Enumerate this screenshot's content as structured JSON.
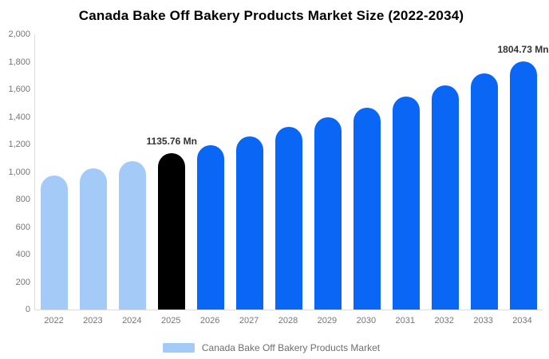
{
  "title": "Canada Bake Off Bakery Products Market Size (2022-2034)",
  "legend": {
    "label": "Canada Bake Off Bakery Products Market",
    "swatch_color": "#a4cbf7"
  },
  "colors": {
    "historical_bar": "#a4cbf7",
    "base_year_bar": "#000000",
    "forecast_bar": "#0a66f5",
    "axis_line": "#dcdcdc",
    "tick_text": "#757575",
    "value_label_text": "#333333",
    "title_text": "#000000",
    "background": "#ffffff"
  },
  "chart_data": {
    "type": "bar",
    "title": "Canada Bake Off Bakery Products Market Size (2022-2034)",
    "xlabel": "",
    "ylabel": "",
    "ylim": [
      0,
      2000
    ],
    "ytick_step": 200,
    "ytick_labels": [
      "2,000",
      "1,800",
      "1,600",
      "1,400",
      "1,200",
      "1,000",
      "800",
      "600",
      "400",
      "200",
      "0"
    ],
    "grid": false,
    "legend_position": "bottom",
    "categories": [
      "2022",
      "2023",
      "2024",
      "2025",
      "2026",
      "2027",
      "2028",
      "2029",
      "2030",
      "2031",
      "2032",
      "2033",
      "2034"
    ],
    "values": [
      973,
      1025,
      1079,
      1135.76,
      1196,
      1259,
      1325,
      1395,
      1469,
      1546,
      1628,
      1714,
      1804.73
    ],
    "bar_colors": [
      "#a4cbf7",
      "#a4cbf7",
      "#a4cbf7",
      "#000000",
      "#0a66f5",
      "#0a66f5",
      "#0a66f5",
      "#0a66f5",
      "#0a66f5",
      "#0a66f5",
      "#0a66f5",
      "#0a66f5",
      "#0a66f5"
    ],
    "point_labels": {
      "2025": "1135.76 Mn",
      "2034": "1804.73 Mn"
    },
    "series": [
      {
        "name": "Canada Bake Off Bakery Products Market",
        "values": [
          973,
          1025,
          1079,
          1135.76,
          1196,
          1259,
          1325,
          1395,
          1469,
          1546,
          1628,
          1714,
          1804.73
        ]
      }
    ]
  }
}
